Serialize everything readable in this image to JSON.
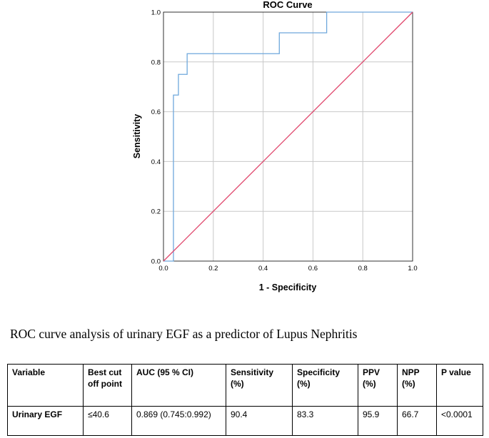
{
  "chart_data": {
    "type": "line",
    "title": "ROC Curve",
    "xlabel": "1 - Specificity",
    "ylabel": "Sensitivity",
    "xlim": [
      0,
      1
    ],
    "ylim": [
      0,
      1
    ],
    "xticks": [
      "0.0",
      "0.2",
      "0.4",
      "0.6",
      "0.8",
      "1.0"
    ],
    "yticks": [
      "0.0",
      "0.2",
      "0.4",
      "0.6",
      "0.8",
      "1.0"
    ],
    "grid": true,
    "legend": "none",
    "series": [
      {
        "color": "#6fa8dc",
        "x": [
          0.0,
          0.04,
          0.04,
          0.04,
          0.06,
          0.06,
          0.095,
          0.095,
          0.465,
          0.465,
          0.655,
          0.655,
          1.0
        ],
        "y": [
          0.0,
          0.0,
          0.583,
          0.667,
          0.667,
          0.75,
          0.75,
          0.833,
          0.833,
          0.917,
          0.917,
          1.0,
          1.0
        ]
      },
      {
        "color": "#e0446a",
        "x": [
          0,
          1
        ],
        "y": [
          0,
          1
        ]
      }
    ]
  },
  "caption": "ROC curve analysis of urinary EGF as a predictor of Lupus Nephritis",
  "table": {
    "headers": [
      "Variable",
      "Best cut off point",
      "AUC (95 % CI)",
      "Sensitivity (%)",
      "Specificity (%)",
      "PPV (%)",
      "NPP (%)",
      "P value"
    ],
    "rows": [
      [
        "Urinary EGF",
        "≤40.6",
        "0.869 (0.745:0.992)",
        "90.4",
        "83.3",
        "95.9",
        "66.7",
        "<0.0001"
      ]
    ]
  }
}
